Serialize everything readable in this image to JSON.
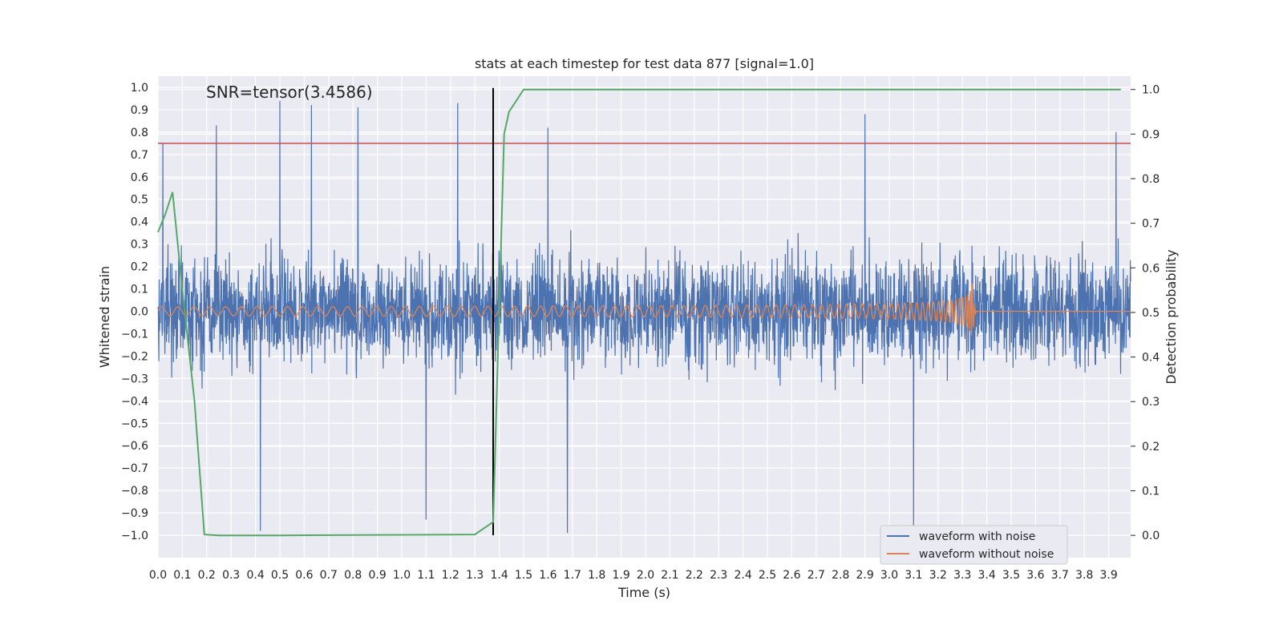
{
  "chart_data": {
    "type": "line",
    "title": "stats at each timestep for test data 877 [signal=1.0]",
    "xlabel": "Time (s)",
    "ylabel": "Whitened strain",
    "y2label": "Detection probability",
    "annotation": "SNR=tensor(3.4586)",
    "xlim": [
      0.0,
      3.99
    ],
    "ylim": [
      -1.1,
      1.05
    ],
    "y2lim": [
      -0.05,
      1.03
    ],
    "xticks": [
      "0.0",
      "0.1",
      "0.2",
      "0.3",
      "0.4",
      "0.5",
      "0.6",
      "0.7",
      "0.8",
      "0.9",
      "1.0",
      "1.1",
      "1.2",
      "1.3",
      "1.4",
      "1.5",
      "1.6",
      "1.7",
      "1.8",
      "1.9",
      "2.0",
      "2.1",
      "2.2",
      "2.3",
      "2.4",
      "2.5",
      "2.6",
      "2.7",
      "2.8",
      "2.9",
      "3.0",
      "3.1",
      "3.2",
      "3.3",
      "3.4",
      "3.5",
      "3.6",
      "3.7",
      "3.8",
      "3.9"
    ],
    "yticks": [
      "1.0",
      "0.9",
      "0.8",
      "0.7",
      "0.6",
      "0.5",
      "0.4",
      "0.3",
      "0.2",
      "0.1",
      "0.0",
      "−0.1",
      "−0.2",
      "−0.3",
      "−0.4",
      "−0.5",
      "−0.6",
      "−0.7",
      "−0.8",
      "−0.9",
      "−1.0"
    ],
    "y2ticks": [
      "1.0",
      "0.9",
      "0.8",
      "0.7",
      "0.6",
      "0.5",
      "0.4",
      "0.3",
      "0.2",
      "0.1",
      "0.0"
    ],
    "threshold_strain": 0.75,
    "marker_time": 1.375,
    "merger_time": 3.34,
    "series": [
      {
        "name": "waveform with noise",
        "color": "#4c72b0",
        "description": "noisy whitened strain, amplitude roughly ±0.4 with peaks to ±0.98",
        "noise_envelope": 0.4,
        "notable_peaks": [
          {
            "t": 0.02,
            "v": 0.75
          },
          {
            "t": 0.24,
            "v": 0.83
          },
          {
            "t": 0.42,
            "v": -0.98
          },
          {
            "t": 0.5,
            "v": 0.94
          },
          {
            "t": 0.63,
            "v": 0.92
          },
          {
            "t": 0.82,
            "v": 0.91
          },
          {
            "t": 1.23,
            "v": 0.93
          },
          {
            "t": 1.1,
            "v": -0.93
          },
          {
            "t": 1.6,
            "v": 0.82
          },
          {
            "t": 1.68,
            "v": -0.99
          },
          {
            "t": 2.9,
            "v": 0.88
          },
          {
            "t": 3.1,
            "v": -0.99
          },
          {
            "t": 3.93,
            "v": 0.8
          }
        ]
      },
      {
        "name": "waveform without noise",
        "color": "#dd8452",
        "description": "chirp signal, amplitude 0.02 rising to 0.14 at merger near t=3.34s, then flat",
        "start_amplitude": 0.02,
        "peak_amplitude": 0.14,
        "start_frequency_hz": 15,
        "end_frequency_hz": 110
      },
      {
        "name": "detection probability",
        "axis": "right",
        "color": "#55a868",
        "x": [
          0.0,
          0.03,
          0.06,
          0.1,
          0.15,
          0.19,
          0.25,
          0.5,
          0.9,
          1.3,
          1.375,
          1.42,
          1.44,
          1.5,
          3.95
        ],
        "values": [
          0.68,
          0.72,
          0.77,
          0.55,
          0.3,
          0.002,
          0.0,
          0.0,
          0.001,
          0.002,
          0.03,
          0.9,
          0.95,
          1.0,
          1.0
        ]
      },
      {
        "name": "threshold",
        "color": "#c44e52",
        "value": 0.75
      }
    ],
    "legend": {
      "placement": "lower-right",
      "entries": [
        {
          "label": "waveform with noise",
          "color": "#4c72b0"
        },
        {
          "label": "waveform without noise",
          "color": "#dd8452"
        }
      ]
    }
  }
}
